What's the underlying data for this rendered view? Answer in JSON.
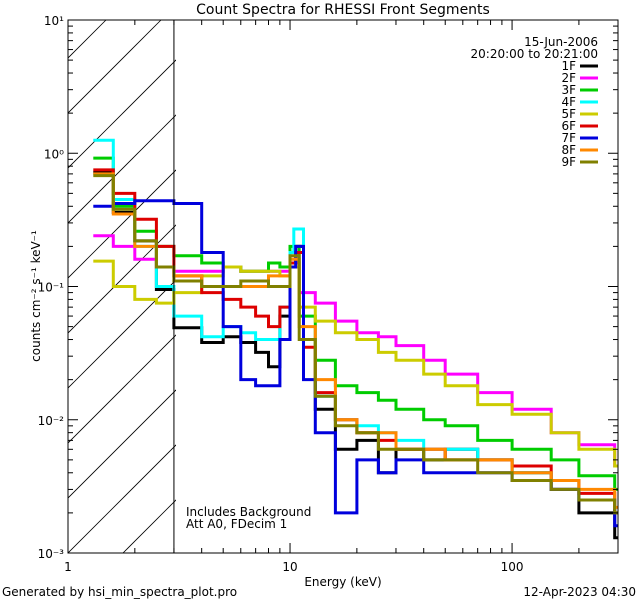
{
  "chart_data": {
    "type": "line",
    "title": "Count Spectra for RHESSI Front Segments",
    "xlabel": "Energy (keV)",
    "ylabel": "counts cm⁻² s⁻¹ keV⁻¹",
    "xscale": "log",
    "yscale": "log",
    "xlim": [
      1,
      300
    ],
    "ylim": [
      0.001,
      10
    ],
    "x_ticks": [
      {
        "value": 1,
        "label": "1"
      },
      {
        "value": 10,
        "label": "10"
      },
      {
        "value": 100,
        "label": "100"
      }
    ],
    "y_ticks": [
      {
        "value": 0.001,
        "label": "10⁻³"
      },
      {
        "value": 0.01,
        "label": "10⁻²"
      },
      {
        "value": 0.1,
        "label": "10⁻¹"
      },
      {
        "value": 1,
        "label": "10⁰"
      },
      {
        "value": 10,
        "label": "10¹"
      }
    ],
    "shaded_region": {
      "from": 1,
      "to": 3,
      "pattern": "hatched"
    },
    "date": "15-Jun-2006",
    "time_range": "20:20:00 to 20:21:00",
    "annotations": [
      "Includes Background",
      "Att A0, FDecim 1"
    ],
    "legend_position": "top-right",
    "series": [
      {
        "name": "1F",
        "color": "#000000",
        "points": [
          [
            1.3,
            0.72
          ],
          [
            1.6,
            0.36
          ],
          [
            2.0,
            0.22
          ],
          [
            2.5,
            0.095
          ],
          [
            3.0,
            0.049
          ],
          [
            4.0,
            0.038
          ],
          [
            5.0,
            0.042
          ],
          [
            6.0,
            0.038
          ],
          [
            7.0,
            0.032
          ],
          [
            8.0,
            0.025
          ],
          [
            9.0,
            0.06
          ],
          [
            10.0,
            0.15
          ],
          [
            10.6,
            0.2
          ],
          [
            11.5,
            0.04
          ],
          [
            13,
            0.012
          ],
          [
            16,
            0.006
          ],
          [
            20,
            0.007
          ],
          [
            25,
            0.004
          ],
          [
            30,
            0.006
          ],
          [
            40,
            0.005
          ],
          [
            50,
            0.006
          ],
          [
            70,
            0.005
          ],
          [
            100,
            0.004
          ],
          [
            150,
            0.003
          ],
          [
            200,
            0.002
          ],
          [
            290,
            0.0013
          ]
        ]
      },
      {
        "name": "2F",
        "color": "#ff00ff",
        "points": [
          [
            1.3,
            0.24
          ],
          [
            1.6,
            0.2
          ],
          [
            2.0,
            0.16
          ],
          [
            2.5,
            0.14
          ],
          [
            3.0,
            0.13
          ],
          [
            4.0,
            0.13
          ],
          [
            5.0,
            0.14
          ],
          [
            6.0,
            0.13
          ],
          [
            7.0,
            0.13
          ],
          [
            8.0,
            0.13
          ],
          [
            9.0,
            0.13
          ],
          [
            10.0,
            0.15
          ],
          [
            11,
            0.09
          ],
          [
            13,
            0.075
          ],
          [
            16,
            0.055
          ],
          [
            20,
            0.045
          ],
          [
            25,
            0.042
          ],
          [
            30,
            0.036
          ],
          [
            40,
            0.028
          ],
          [
            50,
            0.022
          ],
          [
            70,
            0.016
          ],
          [
            100,
            0.012
          ],
          [
            150,
            0.008
          ],
          [
            200,
            0.0065
          ],
          [
            290,
            0.0045
          ]
        ]
      },
      {
        "name": "3F",
        "color": "#00cc00",
        "points": [
          [
            1.3,
            0.92
          ],
          [
            1.6,
            0.4
          ],
          [
            2.0,
            0.26
          ],
          [
            2.5,
            0.2
          ],
          [
            3.0,
            0.17
          ],
          [
            4.0,
            0.15
          ],
          [
            5.0,
            0.14
          ],
          [
            6.0,
            0.13
          ],
          [
            7.0,
            0.13
          ],
          [
            8.0,
            0.15
          ],
          [
            9.0,
            0.14
          ],
          [
            10.0,
            0.2
          ],
          [
            11,
            0.06
          ],
          [
            13,
            0.028
          ],
          [
            16,
            0.018
          ],
          [
            20,
            0.016
          ],
          [
            25,
            0.014
          ],
          [
            30,
            0.012
          ],
          [
            40,
            0.01
          ],
          [
            50,
            0.009
          ],
          [
            70,
            0.007
          ],
          [
            100,
            0.006
          ],
          [
            150,
            0.005
          ],
          [
            200,
            0.0038
          ],
          [
            290,
            0.003
          ]
        ]
      },
      {
        "name": "4F",
        "color": "#00ffff",
        "points": [
          [
            1.3,
            1.25
          ],
          [
            1.6,
            0.45
          ],
          [
            2.0,
            0.2
          ],
          [
            2.5,
            0.1
          ],
          [
            3.0,
            0.06
          ],
          [
            4.0,
            0.042
          ],
          [
            5.0,
            0.05
          ],
          [
            6.0,
            0.045
          ],
          [
            7.0,
            0.04
          ],
          [
            8.0,
            0.04
          ],
          [
            9.0,
            0.07
          ],
          [
            10.0,
            0.18
          ],
          [
            10.4,
            0.27
          ],
          [
            11.5,
            0.04
          ],
          [
            13,
            0.015
          ],
          [
            16,
            0.01
          ],
          [
            20,
            0.009
          ],
          [
            25,
            0.008
          ],
          [
            30,
            0.007
          ],
          [
            40,
            0.006
          ],
          [
            50,
            0.006
          ],
          [
            70,
            0.005
          ],
          [
            100,
            0.004
          ],
          [
            150,
            0.0035
          ],
          [
            200,
            0.0025
          ],
          [
            290,
            0.002
          ]
        ]
      },
      {
        "name": "5F",
        "color": "#cccc00",
        "points": [
          [
            1.3,
            0.155
          ],
          [
            1.6,
            0.1
          ],
          [
            2.0,
            0.08
          ],
          [
            2.5,
            0.075
          ],
          [
            3.0,
            0.09
          ],
          [
            4.0,
            0.12
          ],
          [
            5.0,
            0.14
          ],
          [
            6.0,
            0.13
          ],
          [
            7.0,
            0.13
          ],
          [
            8.0,
            0.13
          ],
          [
            9.0,
            0.12
          ],
          [
            10.0,
            0.14
          ],
          [
            11,
            0.07
          ],
          [
            13,
            0.055
          ],
          [
            16,
            0.045
          ],
          [
            20,
            0.04
          ],
          [
            25,
            0.032
          ],
          [
            30,
            0.028
          ],
          [
            40,
            0.022
          ],
          [
            50,
            0.018
          ],
          [
            70,
            0.013
          ],
          [
            100,
            0.011
          ],
          [
            150,
            0.008
          ],
          [
            200,
            0.006
          ],
          [
            290,
            0.0045
          ]
        ]
      },
      {
        "name": "6F",
        "color": "#dd0000",
        "points": [
          [
            1.3,
            0.75
          ],
          [
            1.6,
            0.5
          ],
          [
            2.0,
            0.32
          ],
          [
            2.5,
            0.2
          ],
          [
            3.0,
            0.12
          ],
          [
            4.0,
            0.09
          ],
          [
            5.0,
            0.08
          ],
          [
            6.0,
            0.07
          ],
          [
            7.0,
            0.06
          ],
          [
            8.0,
            0.05
          ],
          [
            9.0,
            0.07
          ],
          [
            10.0,
            0.15
          ],
          [
            10.6,
            0.18
          ],
          [
            11.5,
            0.035
          ],
          [
            13,
            0.016
          ],
          [
            16,
            0.01
          ],
          [
            20,
            0.008
          ],
          [
            25,
            0.007
          ],
          [
            30,
            0.006
          ],
          [
            40,
            0.006
          ],
          [
            50,
            0.005
          ],
          [
            70,
            0.005
          ],
          [
            100,
            0.0045
          ],
          [
            150,
            0.0035
          ],
          [
            200,
            0.0028
          ],
          [
            290,
            0.002
          ]
        ]
      },
      {
        "name": "7F",
        "color": "#0000dd",
        "points": [
          [
            1.3,
            0.4
          ],
          [
            1.6,
            0.42
          ],
          [
            2.0,
            0.44
          ],
          [
            2.5,
            0.44
          ],
          [
            3.0,
            0.42
          ],
          [
            4.0,
            0.18
          ],
          [
            5.0,
            0.05
          ],
          [
            6.0,
            0.02
          ],
          [
            7.0,
            0.018
          ],
          [
            8.0,
            0.018
          ],
          [
            9.0,
            0.04
          ],
          [
            10.0,
            0.14
          ],
          [
            10.6,
            0.2
          ],
          [
            11.5,
            0.02
          ],
          [
            13,
            0.008
          ],
          [
            16,
            0.002
          ],
          [
            20,
            0.005
          ],
          [
            25,
            0.004
          ],
          [
            30,
            0.005
          ],
          [
            40,
            0.004
          ],
          [
            50,
            0.004
          ],
          [
            70,
            0.004
          ],
          [
            100,
            0.0035
          ],
          [
            150,
            0.003
          ],
          [
            200,
            0.0025
          ],
          [
            290,
            0.0016
          ]
        ]
      },
      {
        "name": "8F",
        "color": "#ff8800",
        "points": [
          [
            1.3,
            0.7
          ],
          [
            1.6,
            0.35
          ],
          [
            2.0,
            0.2
          ],
          [
            2.5,
            0.14
          ],
          [
            3.0,
            0.12
          ],
          [
            4.0,
            0.1
          ],
          [
            5.0,
            0.1
          ],
          [
            6.0,
            0.1
          ],
          [
            7.0,
            0.1
          ],
          [
            8.0,
            0.12
          ],
          [
            9.0,
            0.12
          ],
          [
            10.0,
            0.16
          ],
          [
            11,
            0.05
          ],
          [
            13,
            0.02
          ],
          [
            16,
            0.01
          ],
          [
            20,
            0.008
          ],
          [
            25,
            0.008
          ],
          [
            30,
            0.006
          ],
          [
            40,
            0.006
          ],
          [
            50,
            0.005
          ],
          [
            70,
            0.005
          ],
          [
            100,
            0.004
          ],
          [
            150,
            0.0035
          ],
          [
            200,
            0.003
          ],
          [
            290,
            0.0022
          ]
        ]
      },
      {
        "name": "9F",
        "color": "#808000",
        "points": [
          [
            1.3,
            0.68
          ],
          [
            1.6,
            0.38
          ],
          [
            2.0,
            0.22
          ],
          [
            2.5,
            0.14
          ],
          [
            3.0,
            0.11
          ],
          [
            4.0,
            0.1
          ],
          [
            5.0,
            0.1
          ],
          [
            6.0,
            0.11
          ],
          [
            7.0,
            0.11
          ],
          [
            8.0,
            0.1
          ],
          [
            9.0,
            0.1
          ],
          [
            10.0,
            0.17
          ],
          [
            11,
            0.04
          ],
          [
            13,
            0.015
          ],
          [
            16,
            0.009
          ],
          [
            20,
            0.008
          ],
          [
            25,
            0.006
          ],
          [
            30,
            0.006
          ],
          [
            40,
            0.005
          ],
          [
            50,
            0.005
          ],
          [
            70,
            0.004
          ],
          [
            100,
            0.0035
          ],
          [
            150,
            0.003
          ],
          [
            200,
            0.0025
          ],
          [
            290,
            0.002
          ]
        ]
      }
    ]
  },
  "footer": {
    "generated_by": "Generated by hsi_min_spectra_plot.pro",
    "timestamp": "12-Apr-2023 04:30"
  }
}
